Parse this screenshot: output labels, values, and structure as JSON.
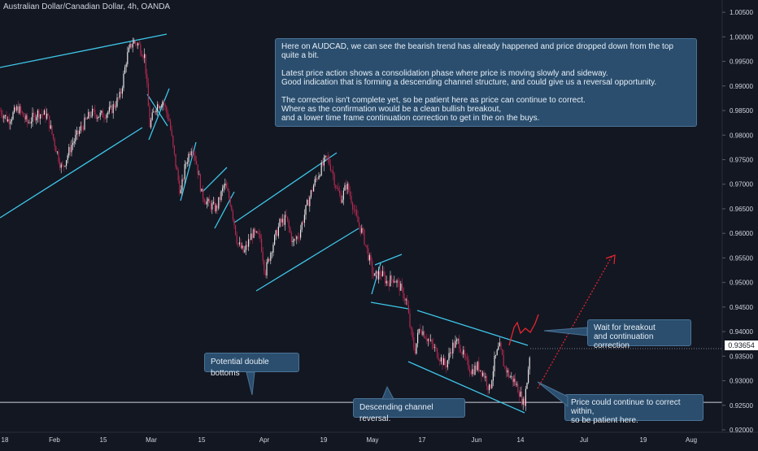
{
  "header": {
    "symbol": "Australian Dollar/Canadian Dollar, 4h, OANDA"
  },
  "price_tag": "0.93654",
  "annotations": {
    "main": {
      "lines": [
        "Here on AUDCAD, we can see the bearish trend has already happened and price dropped down from the top quite a bit.",
        "",
        "Latest price action shows a consolidation phase where price is moving slowly and sideway.",
        "Good indication that is forming a descending channel structure, and could give us a reversal opportunity.",
        "",
        "The correction isn't complete yet, so be patient here as price can continue to correct.",
        "Where as the confirmation would be a clean bullish breakout,",
        "and a lower time frame continuation correction to get in the on the buys."
      ]
    },
    "breakout": {
      "lines": [
        "Wait for breakout",
        "and continuation correction"
      ]
    },
    "double_bottom": {
      "lines": [
        "Potential double bottoms"
      ]
    },
    "channel": {
      "lines": [
        "Descending channel reversal."
      ]
    },
    "correct": {
      "lines": [
        "Price could continue to correct within,",
        "so be patient here."
      ]
    }
  },
  "colors": {
    "background": "#131722",
    "bull_candle": "#e8e8e8",
    "bear_candle": "#b5284f",
    "trendline": "#3ec6e8",
    "projection": "#e8262e",
    "axis_text": "#d1d4dc"
  },
  "chart_data": {
    "type": "candlestick",
    "title": "Australian Dollar/Canadian Dollar, 4h, OANDA",
    "x_ticks": [
      "18",
      "Feb",
      "15",
      "Mar",
      "15",
      "Apr",
      "19",
      "May",
      "17",
      "Jun",
      "14",
      "Jul",
      "19",
      "Aug"
    ],
    "y_ticks": [
      "1.00500",
      "1.00000",
      "0.99500",
      "0.99000",
      "0.98500",
      "0.98000",
      "0.97500",
      "0.97000",
      "0.96500",
      "0.96000",
      "0.95500",
      "0.95000",
      "0.94500",
      "0.94000",
      "0.93500",
      "0.93000",
      "0.92500",
      "0.92000"
    ],
    "ylim": [
      0.9195,
      1.0075
    ],
    "last_price": 0.93654,
    "support_level": 0.9256,
    "price_path": [
      {
        "t": 0,
        "p": 0.985
      },
      {
        "t": 10,
        "p": 0.983
      },
      {
        "t": 22,
        "p": 0.9855
      },
      {
        "t": 34,
        "p": 0.9825
      },
      {
        "t": 46,
        "p": 0.9845
      },
      {
        "t": 58,
        "p": 0.984
      },
      {
        "t": 66,
        "p": 0.979
      },
      {
        "t": 76,
        "p": 0.973
      },
      {
        "t": 88,
        "p": 0.978
      },
      {
        "t": 100,
        "p": 0.9815
      },
      {
        "t": 112,
        "p": 0.9845
      },
      {
        "t": 124,
        "p": 0.984
      },
      {
        "t": 136,
        "p": 0.985
      },
      {
        "t": 148,
        "p": 0.988
      },
      {
        "t": 156,
        "p": 0.996
      },
      {
        "t": 163,
        "p": 0.999
      },
      {
        "t": 170,
        "p": 0.9985
      },
      {
        "t": 178,
        "p": 0.996
      },
      {
        "t": 184,
        "p": 0.982
      },
      {
        "t": 192,
        "p": 0.986
      },
      {
        "t": 200,
        "p": 0.987
      },
      {
        "t": 208,
        "p": 0.983
      },
      {
        "t": 214,
        "p": 0.976
      },
      {
        "t": 222,
        "p": 0.968
      },
      {
        "t": 228,
        "p": 0.974
      },
      {
        "t": 236,
        "p": 0.978
      },
      {
        "t": 242,
        "p": 0.974
      },
      {
        "t": 248,
        "p": 0.968
      },
      {
        "t": 256,
        "p": 0.966
      },
      {
        "t": 266,
        "p": 0.965
      },
      {
        "t": 276,
        "p": 0.97
      },
      {
        "t": 284,
        "p": 0.966
      },
      {
        "t": 292,
        "p": 0.958
      },
      {
        "t": 300,
        "p": 0.956
      },
      {
        "t": 310,
        "p": 0.96
      },
      {
        "t": 320,
        "p": 0.959
      },
      {
        "t": 326,
        "p": 0.952
      },
      {
        "t": 334,
        "p": 0.957
      },
      {
        "t": 344,
        "p": 0.962
      },
      {
        "t": 352,
        "p": 0.963
      },
      {
        "t": 360,
        "p": 0.958
      },
      {
        "t": 368,
        "p": 0.96
      },
      {
        "t": 378,
        "p": 0.966
      },
      {
        "t": 386,
        "p": 0.97
      },
      {
        "t": 394,
        "p": 0.973
      },
      {
        "t": 402,
        "p": 0.9755
      },
      {
        "t": 408,
        "p": 0.973
      },
      {
        "t": 414,
        "p": 0.969
      },
      {
        "t": 420,
        "p": 0.967
      },
      {
        "t": 426,
        "p": 0.97
      },
      {
        "t": 432,
        "p": 0.967
      },
      {
        "t": 438,
        "p": 0.963
      },
      {
        "t": 446,
        "p": 0.96
      },
      {
        "t": 452,
        "p": 0.956
      },
      {
        "t": 460,
        "p": 0.951
      },
      {
        "t": 468,
        "p": 0.952
      },
      {
        "t": 476,
        "p": 0.95
      },
      {
        "t": 484,
        "p": 0.951
      },
      {
        "t": 492,
        "p": 0.949
      },
      {
        "t": 500,
        "p": 0.946
      },
      {
        "t": 505,
        "p": 0.94
      },
      {
        "t": 510,
        "p": 0.936
      },
      {
        "t": 516,
        "p": 0.941
      },
      {
        "t": 524,
        "p": 0.939
      },
      {
        "t": 532,
        "p": 0.937
      },
      {
        "t": 540,
        "p": 0.935
      },
      {
        "t": 548,
        "p": 0.933
      },
      {
        "t": 556,
        "p": 0.937
      },
      {
        "t": 564,
        "p": 0.938
      },
      {
        "t": 572,
        "p": 0.934
      },
      {
        "t": 580,
        "p": 0.932
      },
      {
        "t": 588,
        "p": 0.933
      },
      {
        "t": 596,
        "p": 0.931
      },
      {
        "t": 602,
        "p": 0.928
      },
      {
        "t": 608,
        "p": 0.934
      },
      {
        "t": 614,
        "p": 0.937
      },
      {
        "t": 620,
        "p": 0.933
      },
      {
        "t": 626,
        "p": 0.931
      },
      {
        "t": 632,
        "p": 0.93
      },
      {
        "t": 638,
        "p": 0.928
      },
      {
        "t": 644,
        "p": 0.925
      },
      {
        "t": 648,
        "p": 0.93
      },
      {
        "t": 652,
        "p": 0.9365
      }
    ]
  }
}
